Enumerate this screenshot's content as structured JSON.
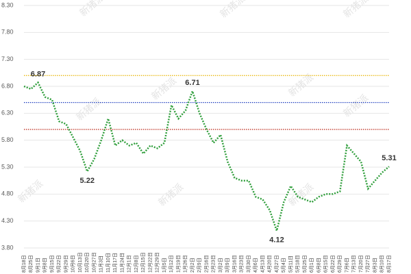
{
  "chart_data": {
    "type": "line",
    "categories": [
      "8月18日",
      "8月25日",
      "9月1日",
      "9月8日",
      "9月15日",
      "9月22日",
      "9月29日",
      "10月6日",
      "10月13日",
      "10月20日",
      "10月27日",
      "11月3日",
      "11月10日",
      "11月17日",
      "11月24日",
      "12月1日",
      "12月8日",
      "12月15日",
      "12月22日",
      "12月29日",
      "1月5日",
      "1月12日",
      "1月19日",
      "1月26日",
      "2月2日",
      "2月9日",
      "2月16日",
      "2月23日",
      "3月2日",
      "3月9日",
      "3月16日",
      "3月23日",
      "3月30日",
      "4月6日",
      "4月13日",
      "4月20日",
      "4月27日",
      "5月4日",
      "5月11日",
      "5月18日",
      "5月25日",
      "6月1日",
      "6月8日",
      "6月15日",
      "6月22日",
      "6月29日",
      "7月6日",
      "7月13日",
      "7月20日",
      "7月27日",
      "8月3日",
      "8月10日",
      "8月17日"
    ],
    "values": [
      6.8,
      6.75,
      6.87,
      6.6,
      6.55,
      6.15,
      6.1,
      5.85,
      5.6,
      5.22,
      5.45,
      5.8,
      6.2,
      5.7,
      5.8,
      5.7,
      5.75,
      5.55,
      5.7,
      5.65,
      5.75,
      6.45,
      6.2,
      6.35,
      6.71,
      6.3,
      6.0,
      5.75,
      5.9,
      5.4,
      5.1,
      5.05,
      5.05,
      4.75,
      4.7,
      4.5,
      4.12,
      4.65,
      4.95,
      4.75,
      4.7,
      4.65,
      4.75,
      4.8,
      4.8,
      4.85,
      5.7,
      5.55,
      5.4,
      4.9,
      5.05,
      5.2,
      5.31
    ],
    "value_labels": [
      null,
      null,
      "6.87",
      null,
      null,
      null,
      null,
      null,
      null,
      "5.22",
      null,
      null,
      null,
      null,
      null,
      null,
      null,
      null,
      null,
      null,
      null,
      null,
      null,
      null,
      "6.71",
      null,
      null,
      null,
      null,
      null,
      null,
      null,
      null,
      null,
      null,
      null,
      "4.12",
      null,
      null,
      null,
      null,
      null,
      null,
      null,
      null,
      null,
      null,
      null,
      null,
      null,
      null,
      null,
      "5.31"
    ],
    "color": "#2f9e3b",
    "ylim": [
      3.8,
      8.3
    ],
    "yticks": [
      {
        "value": 3.8,
        "label": "3.80"
      },
      {
        "value": 4.3,
        "label": "4.30"
      },
      {
        "value": 4.8,
        "label": "4.80"
      },
      {
        "value": 5.3,
        "label": "5.30"
      },
      {
        "value": 5.8,
        "label": "5.80"
      },
      {
        "value": 6.3,
        "label": "6.30"
      },
      {
        "value": 6.8,
        "label": "6.80"
      },
      {
        "value": 7.3,
        "label": "7.30"
      },
      {
        "value": 7.8,
        "label": "7.80"
      },
      {
        "value": 8.3,
        "label": "8.30"
      }
    ],
    "grid": true,
    "reference_lines": [
      {
        "value": 7.0,
        "color": "#e8b400"
      },
      {
        "value": 6.5,
        "color": "#1f3fbf"
      },
      {
        "value": 6.0,
        "color": "#c0392b"
      }
    ],
    "watermark": "新猪派"
  }
}
